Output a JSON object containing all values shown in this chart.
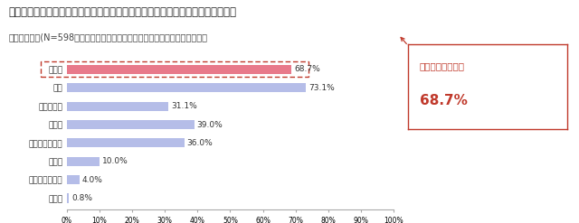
{
  "title": "あなたが節約をされているもので、特に気にされている項目をご選択ください。",
  "subtitle": "（複数回答）(N=598　節約をとてもしている・していると回答した方のみ）",
  "categories": [
    "光熱費",
    "食費",
    "携帯電話代",
    "美容費",
    "交際費・娯楽費",
    "保険料",
    "養育費・教育費",
    "その他"
  ],
  "values": [
    68.7,
    73.1,
    31.1,
    39.0,
    36.0,
    10.0,
    4.0,
    0.8
  ],
  "bar_colors": [
    "#e8798a",
    "#b5bde8",
    "#b5bde8",
    "#b5bde8",
    "#b5bde8",
    "#b5bde8",
    "#b5bde8",
    "#b5bde8"
  ],
  "highlight_index": 0,
  "annotation_line1": "光熱費の節約意識",
  "annotation_line2": "68.7%",
  "annotation_color": "#c0392b",
  "dashed_box_color": "#c0392b",
  "xlim": [
    0,
    100
  ],
  "xticks": [
    0,
    10,
    20,
    30,
    40,
    50,
    60,
    70,
    80,
    90,
    100
  ],
  "xtick_labels": [
    "0%",
    "10%",
    "20%",
    "30%",
    "40%",
    "50%",
    "60%",
    "70%",
    "80%",
    "90%",
    "100%"
  ],
  "background_color": "#ffffff",
  "title_fontsize": 8.5,
  "subtitle_fontsize": 7.0,
  "label_fontsize": 6.5,
  "value_fontsize": 6.5,
  "tick_fontsize": 5.5,
  "ann_fontsize1": 7.5,
  "ann_fontsize2": 11
}
